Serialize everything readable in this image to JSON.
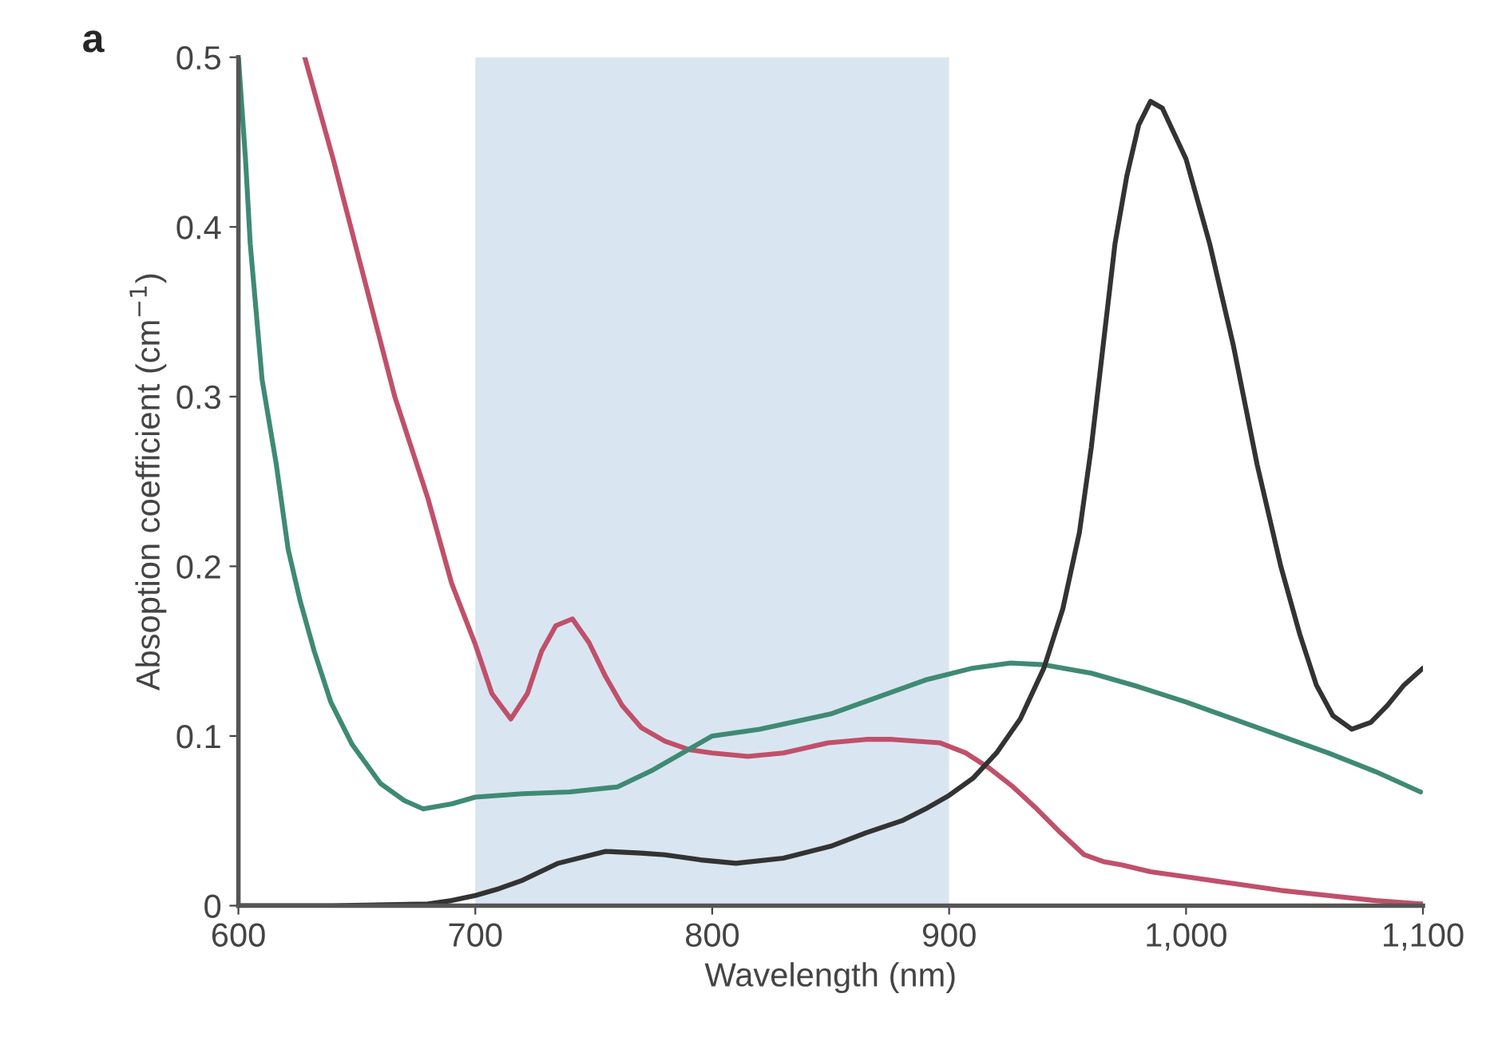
{
  "chart_data": {
    "type": "line",
    "xlabel": "Wavelength (nm)",
    "ylabel": "Absoption coefficient (cm$^{−1}$)",
    "annotations": [
      "a"
    ],
    "xlim": [
      600,
      1100
    ],
    "ylim": [
      0,
      0.5
    ],
    "xticks": [
      600,
      700,
      800,
      900,
      {
        "value": 1000,
        "label": "1,000"
      },
      {
        "value": 1100,
        "label": "1,100"
      }
    ],
    "yticks": [
      0,
      0.1,
      0.2,
      0.3,
      0.4,
      0.5
    ],
    "grid": false,
    "marker": "none",
    "line_style": "solid",
    "bands": [
      {
        "axis": "x",
        "from": 700,
        "to": 900,
        "color": "#d9e6f1"
      }
    ],
    "series": [
      {
        "color": "#c0506a",
        "x": [
          628,
          640,
          653,
          666,
          680,
          690,
          700,
          707,
          715,
          722,
          728,
          734,
          741,
          748,
          755,
          762,
          770,
          780,
          790,
          800,
          815,
          830,
          849,
          865,
          876,
          896,
          907,
          917,
          927,
          937,
          947,
          957,
          965,
          973,
          985,
          1000,
          1020,
          1040,
          1060,
          1080,
          1100
        ],
        "values": [
          0.5,
          0.44,
          0.37,
          0.3,
          0.24,
          0.19,
          0.154,
          0.125,
          0.11,
          0.125,
          0.15,
          0.165,
          0.169,
          0.155,
          0.135,
          0.118,
          0.105,
          0.097,
          0.092,
          0.09,
          0.088,
          0.09,
          0.096,
          0.098,
          0.098,
          0.096,
          0.09,
          0.081,
          0.07,
          0.057,
          0.043,
          0.03,
          0.026,
          0.024,
          0.02,
          0.017,
          0.013,
          0.009,
          0.006,
          0.003,
          0.001
        ]
      },
      {
        "color": "#3f8a74",
        "x": [
          600,
          603,
          605,
          610,
          616,
          621,
          626,
          632,
          639,
          648,
          660,
          670,
          678,
          690,
          700,
          720,
          740,
          760,
          775,
          790,
          800,
          820,
          850,
          870,
          890,
          910,
          926,
          940,
          960,
          980,
          1000,
          1020,
          1040,
          1060,
          1080,
          1099
        ],
        "values": [
          0.5,
          0.44,
          0.39,
          0.31,
          0.26,
          0.21,
          0.18,
          0.15,
          0.12,
          0.095,
          0.072,
          0.062,
          0.057,
          0.06,
          0.064,
          0.066,
          0.067,
          0.07,
          0.08,
          0.092,
          0.1,
          0.104,
          0.113,
          0.123,
          0.133,
          0.14,
          0.143,
          0.142,
          0.137,
          0.129,
          0.12,
          0.11,
          0.1,
          0.09,
          0.079,
          0.067
        ]
      },
      {
        "color": "#333333",
        "x": [
          600,
          640,
          680,
          690,
          700,
          710,
          720,
          735,
          755,
          770,
          780,
          795,
          810,
          830,
          850,
          865,
          880,
          890,
          900,
          910,
          920,
          930,
          940,
          948,
          955,
          960,
          965,
          970,
          975,
          980,
          985,
          990,
          1000,
          1010,
          1020,
          1030,
          1040,
          1048,
          1055,
          1062,
          1070,
          1078,
          1085,
          1092,
          1100
        ],
        "values": [
          0,
          0,
          0.001,
          0.003,
          0.006,
          0.01,
          0.015,
          0.025,
          0.032,
          0.031,
          0.03,
          0.027,
          0.025,
          0.028,
          0.035,
          0.043,
          0.05,
          0.057,
          0.065,
          0.075,
          0.09,
          0.11,
          0.14,
          0.175,
          0.22,
          0.27,
          0.33,
          0.39,
          0.43,
          0.46,
          0.474,
          0.47,
          0.44,
          0.39,
          0.33,
          0.26,
          0.2,
          0.16,
          0.13,
          0.112,
          0.104,
          0.108,
          0.118,
          0.13,
          0.14
        ]
      }
    ]
  }
}
